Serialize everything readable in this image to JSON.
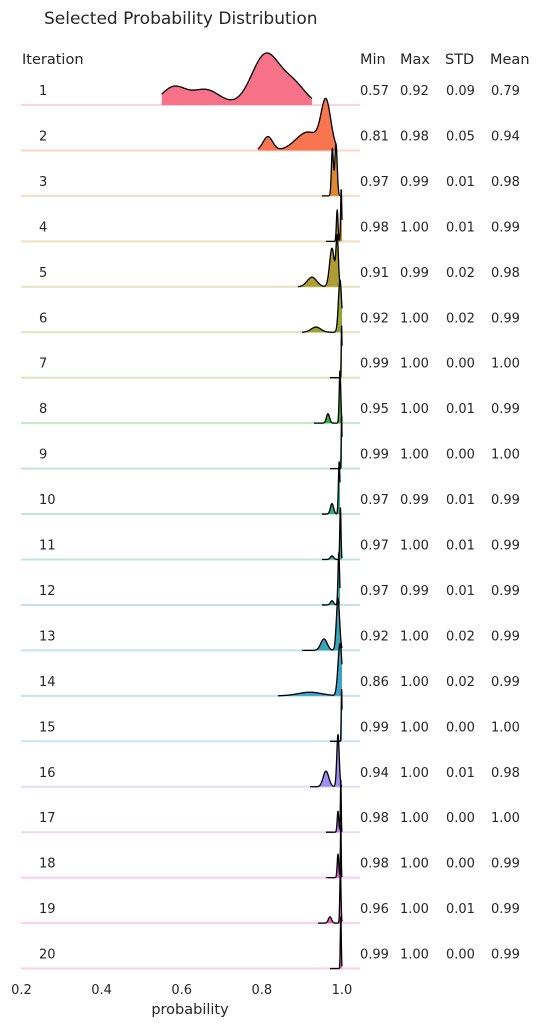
{
  "chart_data": {
    "type": "ridgeline",
    "title": "Selected Probability Distribution",
    "xlabel": "probability",
    "xlim": [
      0.2,
      1.05
    ],
    "xticks": [
      "0.2",
      "0.4",
      "0.6",
      "0.8",
      "1.0"
    ],
    "xtick_values": [
      0.2,
      0.4,
      0.6,
      0.8,
      1.0
    ],
    "headers": {
      "iteration": "Iteration",
      "min": "Min",
      "max": "Max",
      "std": "STD",
      "mean": "Mean"
    },
    "rows": [
      {
        "iteration": "1",
        "min": "0.57",
        "max": "0.92",
        "std": "0.09",
        "mean": "0.79",
        "color": "#f77189",
        "components": [
          [
            0.58,
            0.03,
            0.35
          ],
          [
            0.66,
            0.035,
            0.3
          ],
          [
            0.81,
            0.035,
            1.0
          ],
          [
            0.88,
            0.03,
            0.38
          ]
        ]
      },
      {
        "iteration": "2",
        "min": "0.81",
        "max": "0.98",
        "std": "0.05",
        "mean": "0.94",
        "color": "#f7754f",
        "components": [
          [
            0.815,
            0.012,
            0.3
          ],
          [
            0.915,
            0.03,
            0.4
          ],
          [
            0.96,
            0.012,
            1.0
          ]
        ]
      },
      {
        "iteration": "3",
        "min": "0.97",
        "max": "0.99",
        "std": "0.01",
        "mean": "0.98",
        "color": "#dc8932",
        "components": [
          [
            0.976,
            0.0025,
            0.9
          ],
          [
            0.985,
            0.003,
            1.0
          ]
        ]
      },
      {
        "iteration": "4",
        "min": "0.98",
        "max": "1.00",
        "std": "0.01",
        "mean": "0.99",
        "color": "#c39532",
        "components": [
          [
            0.988,
            0.002,
            0.6
          ],
          [
            0.998,
            0.0015,
            1.0
          ]
        ]
      },
      {
        "iteration": "5",
        "min": "0.91",
        "max": "0.99",
        "std": "0.02",
        "mean": "0.98",
        "color": "#ae9d31",
        "components": [
          [
            0.925,
            0.012,
            0.2
          ],
          [
            0.975,
            0.006,
            0.8
          ],
          [
            0.988,
            0.003,
            1.0
          ]
        ]
      },
      {
        "iteration": "6",
        "min": "0.92",
        "max": "1.00",
        "std": "0.02",
        "mean": "0.99",
        "color": "#97a431",
        "components": [
          [
            0.935,
            0.012,
            0.1
          ],
          [
            0.995,
            0.004,
            1.0
          ]
        ]
      },
      {
        "iteration": "7",
        "min": "0.99",
        "max": "1.00",
        "std": "0.00",
        "mean": "1.00",
        "color": "#77ab31",
        "components": [
          [
            0.999,
            0.001,
            1.0
          ]
        ]
      },
      {
        "iteration": "8",
        "min": "0.95",
        "max": "1.00",
        "std": "0.01",
        "mean": "0.99",
        "color": "#33b039",
        "components": [
          [
            0.965,
            0.004,
            0.18
          ],
          [
            0.995,
            0.002,
            1.0
          ]
        ]
      },
      {
        "iteration": "9",
        "min": "0.99",
        "max": "1.00",
        "std": "0.00",
        "mean": "1.00",
        "color": "#35ad6b",
        "components": [
          [
            0.999,
            0.001,
            1.0
          ]
        ]
      },
      {
        "iteration": "10",
        "min": "0.97",
        "max": "0.99",
        "std": "0.01",
        "mean": "0.99",
        "color": "#36ab88",
        "components": [
          [
            0.975,
            0.004,
            0.2
          ],
          [
            0.993,
            0.002,
            1.0
          ]
        ]
      },
      {
        "iteration": "11",
        "min": "0.97",
        "max": "1.00",
        "std": "0.01",
        "mean": "0.99",
        "color": "#37a99b",
        "components": [
          [
            0.975,
            0.004,
            0.07
          ],
          [
            0.996,
            0.0015,
            1.0
          ]
        ]
      },
      {
        "iteration": "12",
        "min": "0.97",
        "max": "0.99",
        "std": "0.01",
        "mean": "0.99",
        "color": "#38a7aa",
        "components": [
          [
            0.975,
            0.004,
            0.08
          ],
          [
            0.992,
            0.002,
            1.0
          ]
        ]
      },
      {
        "iteration": "13",
        "min": "0.92",
        "max": "1.00",
        "std": "0.02",
        "mean": "0.99",
        "color": "#39a5b8",
        "components": [
          [
            0.955,
            0.008,
            0.22
          ],
          [
            0.99,
            0.004,
            1.0
          ]
        ]
      },
      {
        "iteration": "14",
        "min": "0.86",
        "max": "1.00",
        "std": "0.02",
        "mean": "0.99",
        "color": "#3ba3c8",
        "components": [
          [
            0.92,
            0.03,
            0.07
          ],
          [
            0.995,
            0.005,
            1.0
          ]
        ]
      },
      {
        "iteration": "15",
        "min": "0.99",
        "max": "1.00",
        "std": "0.00",
        "mean": "1.00",
        "color": "#4e9ee8",
        "components": [
          [
            0.999,
            0.001,
            1.0
          ]
        ]
      },
      {
        "iteration": "16",
        "min": "0.94",
        "max": "1.00",
        "std": "0.01",
        "mean": "0.98",
        "color": "#9f8ef4",
        "components": [
          [
            0.96,
            0.007,
            0.3
          ],
          [
            0.99,
            0.003,
            1.0
          ]
        ]
      },
      {
        "iteration": "17",
        "min": "0.98",
        "max": "1.00",
        "std": "0.00",
        "mean": "1.00",
        "color": "#cb79f4",
        "components": [
          [
            0.99,
            0.002,
            0.4
          ],
          [
            0.997,
            0.001,
            1.0
          ]
        ]
      },
      {
        "iteration": "18",
        "min": "0.98",
        "max": "1.00",
        "std": "0.00",
        "mean": "0.99",
        "color": "#f052e4",
        "components": [
          [
            0.99,
            0.002,
            0.45
          ],
          [
            0.997,
            0.001,
            1.0
          ]
        ]
      },
      {
        "iteration": "19",
        "min": "0.96",
        "max": "1.00",
        "std": "0.01",
        "mean": "0.99",
        "color": "#f45fc6",
        "components": [
          [
            0.97,
            0.004,
            0.12
          ],
          [
            0.996,
            0.0015,
            1.0
          ]
        ]
      },
      {
        "iteration": "20",
        "min": "0.99",
        "max": "1.00",
        "std": "0.00",
        "mean": "0.99",
        "color": "#f56aab",
        "components": [
          [
            0.997,
            0.0012,
            1.0
          ]
        ]
      }
    ]
  }
}
